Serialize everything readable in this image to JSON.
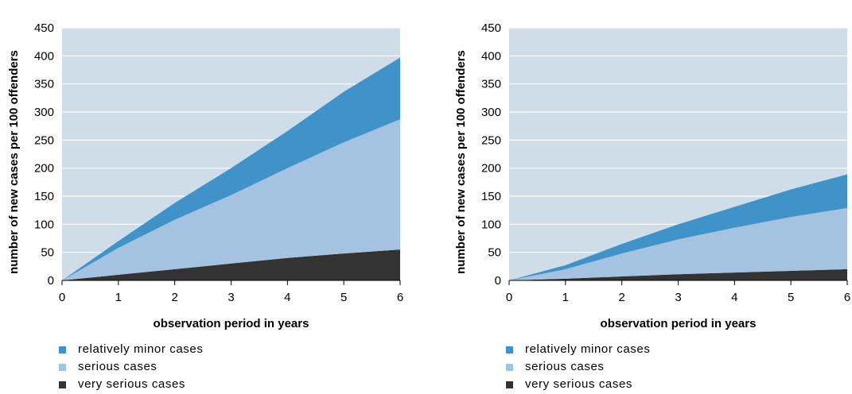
{
  "chart_data": [
    {
      "type": "area",
      "stacked": true,
      "x": [
        0,
        1,
        2,
        3,
        4,
        5,
        6
      ],
      "xlabel": "observation period in years",
      "ylabel": "number of new cases per 100 offenders",
      "ylim": [
        0,
        450
      ],
      "yticks": [
        0,
        50,
        100,
        150,
        200,
        250,
        300,
        350,
        400,
        450
      ],
      "xticks": [
        0,
        1,
        2,
        3,
        4,
        5,
        6
      ],
      "grid": true,
      "legend_position": "bottom-left",
      "series": [
        {
          "name": "very serious cases",
          "color": "#333333",
          "values": [
            0,
            10,
            20,
            30,
            40,
            48,
            55
          ]
        },
        {
          "name": "serious cases",
          "color": "#a4c3e1",
          "values": [
            0,
            48,
            88,
            122,
            160,
            198,
            232
          ]
        },
        {
          "name": "relatively minor cases",
          "color": "#3f93c8",
          "values": [
            0,
            12,
            30,
            48,
            66,
            90,
            110
          ]
        }
      ]
    },
    {
      "type": "area",
      "stacked": true,
      "x": [
        0,
        1,
        2,
        3,
        4,
        5,
        6
      ],
      "xlabel": "observation period in years",
      "ylabel": "number of new cases per 100 offenders",
      "ylim": [
        0,
        450
      ],
      "yticks": [
        0,
        50,
        100,
        150,
        200,
        250,
        300,
        350,
        400,
        450
      ],
      "xticks": [
        0,
        1,
        2,
        3,
        4,
        5,
        6
      ],
      "grid": true,
      "legend_position": "bottom-left",
      "series": [
        {
          "name": "very serious cases",
          "color": "#333333",
          "values": [
            0,
            3,
            7,
            11,
            14,
            17,
            20
          ]
        },
        {
          "name": "serious cases",
          "color": "#a4c3e1",
          "values": [
            0,
            17,
            41,
            62,
            80,
            96,
            109
          ]
        },
        {
          "name": "relatively minor cases",
          "color": "#3f93c8",
          "values": [
            0,
            7,
            17,
            27,
            37,
            49,
            60
          ]
        }
      ]
    }
  ],
  "legend": [
    {
      "label": "relatively minor cases",
      "color": "#3f93c8"
    },
    {
      "label": "serious cases",
      "color": "#a4c3e1"
    },
    {
      "label": "very serious cases",
      "color": "#333333"
    }
  ],
  "plot_background": "#cfdde8"
}
